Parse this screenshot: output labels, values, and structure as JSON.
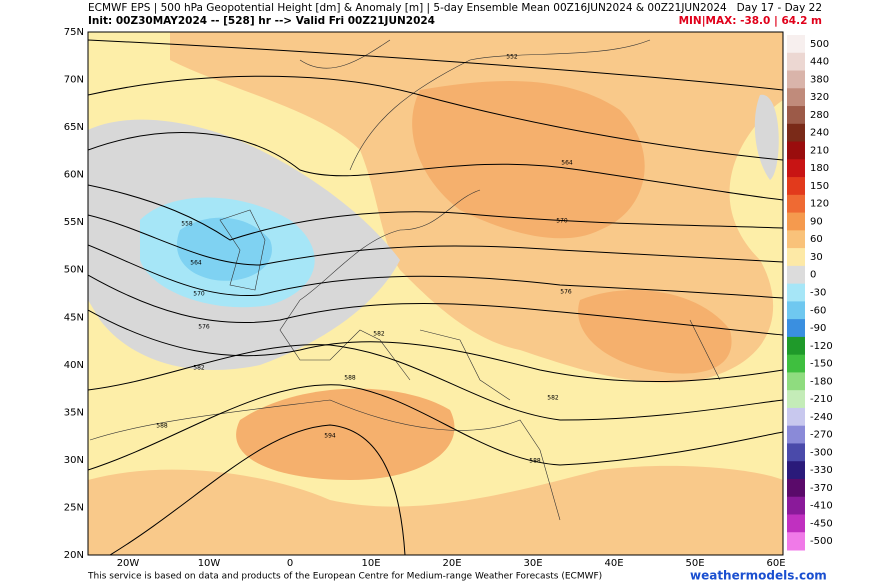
{
  "header": {
    "line1": "ECMWF EPS | 500 hPa Geopotential Height [dm] & Anomaly [m] | 5-day Ensemble Mean 00Z16JUN2024 & 00Z21JUN2024",
    "line2": "Init: 00Z30MAY2024 -- [528] hr --> Valid Fri 00Z21JUN2024",
    "period": "Day 17 - Day 22",
    "minmax": "MIN|MAX: -38.0 | 64.2 m"
  },
  "map": {
    "lat_labels": [
      "75N",
      "70N",
      "65N",
      "60N",
      "55N",
      "50N",
      "45N",
      "40N",
      "35N",
      "30N",
      "25N",
      "20N"
    ],
    "lon_labels": [
      "20W",
      "10W",
      "0",
      "10E",
      "20E",
      "30E",
      "40E",
      "50E",
      "60E"
    ],
    "contour_labels": [
      552,
      558,
      564,
      570,
      576,
      582,
      588,
      594,
      564,
      570,
      576,
      582,
      588,
      582,
      588
    ]
  },
  "colorbar": {
    "labels": [
      500,
      440,
      380,
      320,
      280,
      240,
      210,
      180,
      150,
      120,
      90,
      60,
      30,
      0,
      -30,
      -60,
      -90,
      -120,
      -150,
      -180,
      -210,
      -240,
      -270,
      -300,
      -330,
      -370,
      -410,
      -450,
      -500
    ],
    "colors": [
      "#f7efee",
      "#ecd7d2",
      "#d9b4aa",
      "#c08b7b",
      "#9c5a48",
      "#7a2a18",
      "#9a0d0d",
      "#c81414",
      "#e23a1c",
      "#ef6a33",
      "#f59a4e",
      "#f9c27a",
      "#fde9a6",
      "#dcdcdc",
      "#a6e6f7",
      "#6fc8f0",
      "#3a8fe0",
      "#1f9a2a",
      "#3fbf3f",
      "#8fdc7f",
      "#c4ecb8",
      "#c8c8ee",
      "#8a8ad8",
      "#4a4aaa",
      "#2a1a7a",
      "#5a0a6a",
      "#8a1a9a",
      "#c030c0",
      "#f07ae8"
    ]
  },
  "footer": {
    "credit": "This service is based on data and products of the European Centre for Medium-range Weather Forecasts (ECMWF)",
    "site": "weathermodels.com"
  }
}
